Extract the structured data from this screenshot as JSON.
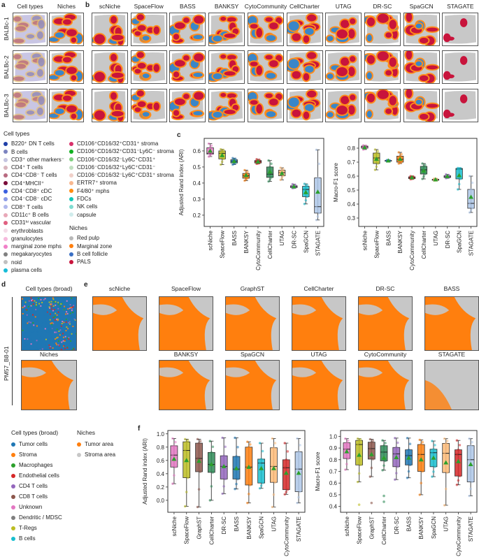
{
  "panels": {
    "a": "a",
    "b": "b",
    "c": "c",
    "d": "d",
    "e": "e",
    "f": "f"
  },
  "panel_a": {
    "col_titles": [
      "Cell types",
      "Niches"
    ],
    "row_labels": [
      "BALBc-1",
      "BALBc-2",
      "BALBc-3"
    ]
  },
  "panel_b": {
    "methods": [
      "scNiche",
      "SpaceFlow",
      "BASS",
      "BANKSY",
      "CytoCommunity",
      "CellCharter",
      "UTAG",
      "DR-SC",
      "SpaGCN",
      "STAGATE"
    ]
  },
  "legend_a": {
    "cell_types_title": "Cell types",
    "cell_types": [
      {
        "label": "B220⁺ DN T cells",
        "color": "#1f3fa8"
      },
      {
        "label": "B cells",
        "color": "#7b83c0"
      },
      {
        "label": "CD3⁺ other markers⁻",
        "color": "#c4c4e0"
      },
      {
        "label": "CD4⁺ T cells",
        "color": "#d8b4bc"
      },
      {
        "label": "CD4⁺CD8⁻ T cells",
        "color": "#b86a80"
      },
      {
        "label": "CD4⁺MHCII⁺",
        "color": "#7a0c3a"
      },
      {
        "label": "CD4⁻CD8⁺ cDC",
        "color": "#3a5fe0"
      },
      {
        "label": "CD4⁻CD8⁻ cDC",
        "color": "#8a9ae6"
      },
      {
        "label": "CD8⁺ T cells",
        "color": "#b0b8ec"
      },
      {
        "label": "CD11c⁺ B cells",
        "color": "#e8a8b8"
      },
      {
        "label": "CD31ʰⁱ vascular",
        "color": "#e06080"
      },
      {
        "label": "erythroblasts",
        "color": "#f4dce8"
      },
      {
        "label": "granulocytes",
        "color": "#f6b8dc"
      },
      {
        "label": "marginal zone mphs",
        "color": "#f080c8"
      },
      {
        "label": "megakaryocytes",
        "color": "#808080"
      },
      {
        "label": "noid",
        "color": "#c0c0c0"
      },
      {
        "label": "plasma cells",
        "color": "#17bcd8"
      },
      {
        "label": "CD106⁺CD16/32⁺CD31⁺ stroma",
        "color": "#d8306a"
      },
      {
        "label": "CD106⁺CD16/32⁺CD31⁻Ly6C⁻ stroma",
        "color": "#10b020"
      },
      {
        "label": "CD106⁺CD16/32⁻Ly6C⁺CD31⁺",
        "color": "#80d080"
      },
      {
        "label": "CD106⁻CD16/32⁺Ly6C⁺CD31⁻",
        "color": "#c0e0c0"
      },
      {
        "label": "CD106⁻CD16/32⁻Ly6C⁺CD31⁺ stroma",
        "color": "#f0d0c8"
      },
      {
        "label": "ERTR7⁺ stroma",
        "color": "#f8b890"
      },
      {
        "label": "F4/80⁺ mphs",
        "color": "#ff8c10"
      },
      {
        "label": "FDCs",
        "color": "#10c8b8"
      },
      {
        "label": "NK cells",
        "color": "#80dcd0"
      },
      {
        "label": "capsule",
        "color": "#d0ecec"
      }
    ],
    "niches_title": "Niches",
    "niches": [
      {
        "label": "Red pulp",
        "color": "#b8b8b8"
      },
      {
        "label": "Marginal zone",
        "color": "#ff7f0e"
      },
      {
        "label": "B cell follicle",
        "color": "#3a6fc4"
      },
      {
        "label": "PALS",
        "color": "#c8143c"
      }
    ]
  },
  "panel_d": {
    "titles": [
      "Cell types (broad)",
      "Niches"
    ],
    "sample_label": "PM57_B8-01"
  },
  "panel_e": {
    "row1": [
      "scNiche",
      "SpaceFlow",
      "GraphST",
      "CellCharter",
      "DR-SC",
      "BASS"
    ],
    "row2": [
      "BANKSY",
      "SpaGCN",
      "UTAG",
      "CytoCommunity",
      "STAGATE"
    ]
  },
  "legend_d": {
    "cell_types_title": "Cell types (broad)",
    "cell_types": [
      {
        "label": "Tumor cells",
        "color": "#1f77b4"
      },
      {
        "label": "Stroma",
        "color": "#ff7f0e"
      },
      {
        "label": "Macrophages",
        "color": "#2ca02c"
      },
      {
        "label": "Endothelial cells",
        "color": "#d62728"
      },
      {
        "label": "CD4 T cells",
        "color": "#9467bd"
      },
      {
        "label": "CD8 T cells",
        "color": "#8c564b"
      },
      {
        "label": "Unknown",
        "color": "#e377c2"
      },
      {
        "label": "Dendritic / MDSC",
        "color": "#7f7f7f"
      },
      {
        "label": "T-Regs",
        "color": "#bcbd22"
      },
      {
        "label": "B cells",
        "color": "#17becf"
      }
    ],
    "niches_title": "Niches",
    "niches": [
      {
        "label": "Tumor area",
        "color": "#ff7f0e"
      },
      {
        "label": "Stroma area",
        "color": "#c7c7c7"
      }
    ]
  },
  "colors": {
    "scNiche": "#e377c2",
    "SpaceFlow": "#bcbd22",
    "BASS": "#1f77b4",
    "BANKSY": "#ff7f0e",
    "CytoCommunity": "#d62728",
    "CellCharter": "#2e8b57",
    "UTAG": "#ffbb78",
    "DR-SC": "#9467bd",
    "SpaGCN": "#17becf",
    "STAGATE": "#aec7e8",
    "GraphST": "#8c564b",
    "mean": "#2ca02c"
  },
  "chart_data": [
    {
      "id": "c-ari",
      "type": "box",
      "ylabel": "Adjusted Rand index (ARI)",
      "ylim": [
        0.13,
        0.678
      ],
      "yticks": [
        0.2,
        0.3,
        0.4,
        0.5,
        0.6
      ],
      "categories": [
        "scNiche",
        "SpaceFlow",
        "BASS",
        "BANKSY",
        "CytoCommunity",
        "CellCharter",
        "UTAG",
        "DR-SC",
        "SpaGCN",
        "STAGATE"
      ],
      "boxes": [
        [
          0.565,
          0.58,
          0.585,
          0.62,
          0.645,
          0.6
        ],
        [
          0.515,
          0.55,
          0.585,
          0.6,
          0.61,
          0.572
        ],
        [
          0.515,
          0.525,
          0.535,
          0.545,
          0.555,
          0.535
        ],
        [
          0.415,
          0.43,
          0.445,
          0.46,
          0.48,
          0.448
        ],
        [
          0.52,
          0.525,
          0.535,
          0.54,
          0.548,
          0.533
        ],
        [
          0.41,
          0.435,
          0.455,
          0.5,
          0.54,
          0.47
        ],
        [
          0.42,
          0.445,
          0.465,
          0.48,
          0.495,
          0.46
        ],
        [
          0.368,
          0.372,
          0.378,
          0.383,
          0.393,
          0.378
        ],
        [
          0.27,
          0.315,
          0.36,
          0.38,
          0.395,
          0.342
        ],
        [
          0.17,
          0.213,
          0.253,
          0.432,
          0.607,
          0.345
        ]
      ],
      "box_fields": [
        "whislo",
        "q1",
        "median",
        "q3",
        "whishi",
        "mean"
      ]
    },
    {
      "id": "c-f1",
      "type": "box",
      "ylabel": "Macro-F1 score",
      "ylim": [
        0.24,
        0.87
      ],
      "yticks": [
        0.3,
        0.4,
        0.5,
        0.6,
        0.7,
        0.8
      ],
      "categories": [
        "scNiche",
        "SpaceFlow",
        "BASS",
        "BANKSY",
        "CytoCommunity",
        "CellCharter",
        "UTAG",
        "DR-SC",
        "SpaGCN",
        "STAGATE"
      ],
      "boxes": [
        [
          0.79,
          0.8,
          0.81,
          0.815,
          0.82,
          0.805
        ],
        [
          0.645,
          0.69,
          0.73,
          0.765,
          0.79,
          0.722
        ],
        [
          0.706,
          0.708,
          0.71,
          0.712,
          0.714,
          0.71
        ],
        [
          0.69,
          0.7,
          0.72,
          0.743,
          0.77,
          0.722
        ],
        [
          0.578,
          0.582,
          0.588,
          0.595,
          0.6,
          0.59
        ],
        [
          0.58,
          0.615,
          0.645,
          0.67,
          0.69,
          0.638
        ],
        [
          0.568,
          0.57,
          0.575,
          0.578,
          0.583,
          0.575
        ],
        [
          0.585,
          0.59,
          0.595,
          0.603,
          0.612,
          0.598
        ],
        [
          0.505,
          0.58,
          0.65,
          0.655,
          0.658,
          0.605
        ],
        [
          0.34,
          0.37,
          0.405,
          0.505,
          0.6,
          0.45
        ]
      ],
      "box_fields": [
        "whislo",
        "q1",
        "median",
        "q3",
        "whishi",
        "mean"
      ]
    },
    {
      "id": "f-ari",
      "type": "box",
      "ylabel": "Adjusted Rand index (ARI)",
      "ylim": [
        -0.18,
        1.05
      ],
      "yticks": [
        0.0,
        0.2,
        0.4,
        0.6,
        0.8,
        1.0
      ],
      "categories": [
        "scNiche",
        "SpaceFlow",
        "GraphST",
        "CellCharter",
        "DR-SC",
        "BASS",
        "BANKSY",
        "SpaGCN",
        "UTAG",
        "CytoCommunity",
        "STAGATE"
      ],
      "boxes": [
        [
          0.25,
          0.5,
          0.68,
          0.82,
          0.93,
          0.62
        ],
        [
          -0.09,
          0.34,
          0.75,
          0.88,
          0.92,
          0.6
        ],
        [
          -0.1,
          0.43,
          0.63,
          0.86,
          0.92,
          0.59
        ],
        [
          0.0,
          0.42,
          0.54,
          0.72,
          0.89,
          0.54
        ],
        [
          0.1,
          0.32,
          0.51,
          0.67,
          0.94,
          0.51
        ],
        [
          0.17,
          0.32,
          0.47,
          0.66,
          0.94,
          0.48
        ],
        [
          -0.04,
          0.23,
          0.5,
          0.8,
          0.88,
          0.5
        ],
        [
          0.18,
          0.26,
          0.56,
          0.62,
          0.86,
          0.48
        ],
        [
          -0.1,
          0.27,
          0.51,
          0.79,
          0.93,
          0.48
        ],
        [
          0.09,
          0.16,
          0.49,
          0.61,
          0.86,
          0.41
        ],
        [
          -0.04,
          0.13,
          0.47,
          0.73,
          0.93,
          0.41
        ]
      ],
      "box_fields": [
        "whislo",
        "q1",
        "median",
        "q3",
        "whishi",
        "mean"
      ]
    },
    {
      "id": "f-f1",
      "type": "box",
      "ylabel": "Macro-F1 score",
      "ylim": [
        0.35,
        1.05
      ],
      "yticks": [
        0.4,
        0.5,
        0.6,
        0.7,
        0.8,
        0.9,
        1.0
      ],
      "categories": [
        "scNiche",
        "SpaceFlow",
        "GraphST",
        "CellCharter",
        "DR-SC",
        "BASS",
        "BANKSY",
        "SpaGCN",
        "UTAG",
        "CytoCommunity",
        "STAGATE"
      ],
      "boxes": [
        [
          0.715,
          0.81,
          0.89,
          0.945,
          0.98,
          0.87
        ],
        [
          0.61,
          0.755,
          0.93,
          0.965,
          0.98,
          0.84
        ],
        [
          0.655,
          0.805,
          0.895,
          0.95,
          0.975,
          0.845
        ],
        [
          0.71,
          0.79,
          0.865,
          0.92,
          0.965,
          0.815
        ],
        [
          0.63,
          0.74,
          0.85,
          0.905,
          0.985,
          0.82
        ],
        [
          0.645,
          0.755,
          0.835,
          0.885,
          0.985,
          0.815
        ],
        [
          0.5,
          0.7,
          0.845,
          0.93,
          0.97,
          0.8
        ],
        [
          0.655,
          0.74,
          0.86,
          0.89,
          0.96,
          0.815
        ],
        [
          0.41,
          0.69,
          0.855,
          0.94,
          0.98,
          0.775
        ],
        [
          0.585,
          0.66,
          0.845,
          0.885,
          0.965,
          0.785
        ],
        [
          0.49,
          0.61,
          0.8,
          0.92,
          0.98,
          0.76
        ]
      ],
      "outliers": {
        "SpaceFlow": [
          0.415
        ],
        "GraphST": [
          0.43
        ],
        "CellCharter": [
          0.49,
          0.44
        ]
      },
      "box_fields": [
        "whislo",
        "q1",
        "median",
        "q3",
        "whishi",
        "mean"
      ]
    }
  ]
}
